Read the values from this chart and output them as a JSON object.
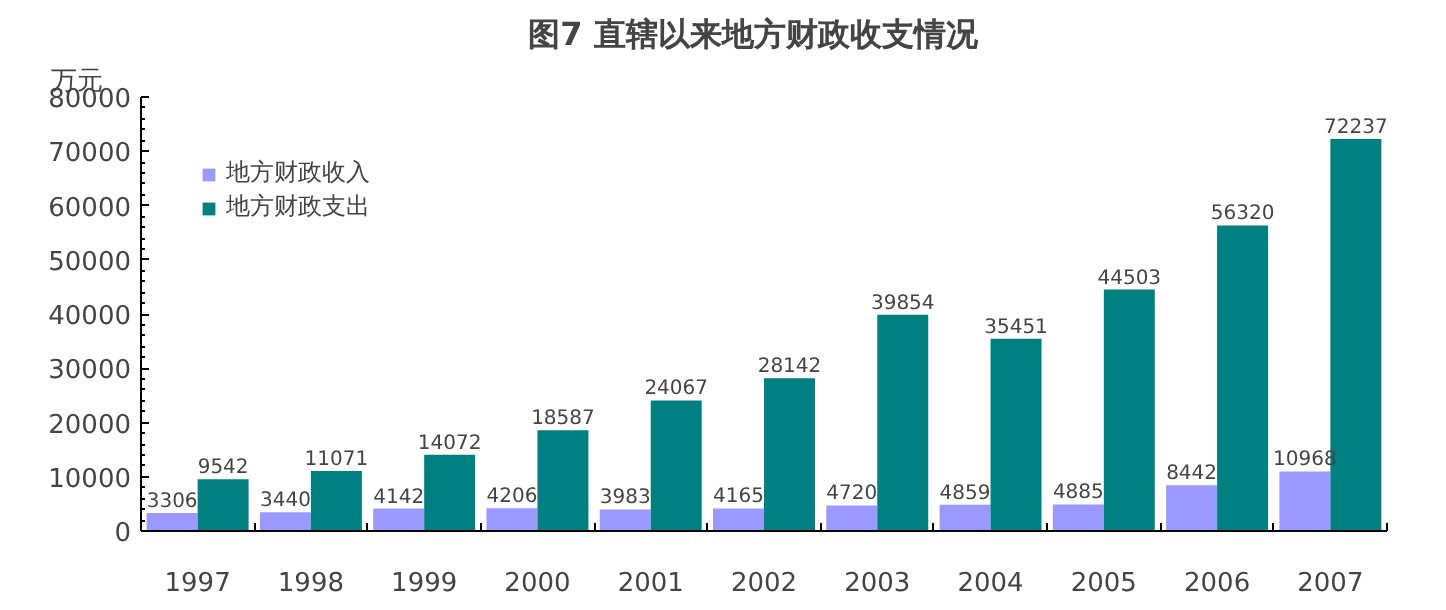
{
  "chart_data": {
    "type": "bar",
    "title": "图7   直辖以来地方财政收支情况",
    "ylabel": "万元",
    "categories": [
      "1997",
      "1998",
      "1999",
      "2000",
      "2001",
      "2002",
      "2003",
      "2004",
      "2005",
      "2006",
      "2007"
    ],
    "series": [
      {
        "name": "地方财政收入",
        "color": "#9999ff",
        "values": [
          3306,
          3440,
          4142,
          4206,
          3983,
          4165,
          4720,
          4859,
          4885,
          8442,
          10968
        ]
      },
      {
        "name": "地方财政支出",
        "color": "#008080",
        "values": [
          9542,
          11071,
          14072,
          18587,
          24067,
          28142,
          39854,
          35451,
          44503,
          56320,
          72237
        ]
      }
    ],
    "ylim": [
      0,
      80000
    ],
    "yticks": [
      0,
      10000,
      20000,
      30000,
      40000,
      50000,
      60000,
      70000,
      80000
    ],
    "data_labels": true,
    "legend": "top left",
    "grid": false
  }
}
